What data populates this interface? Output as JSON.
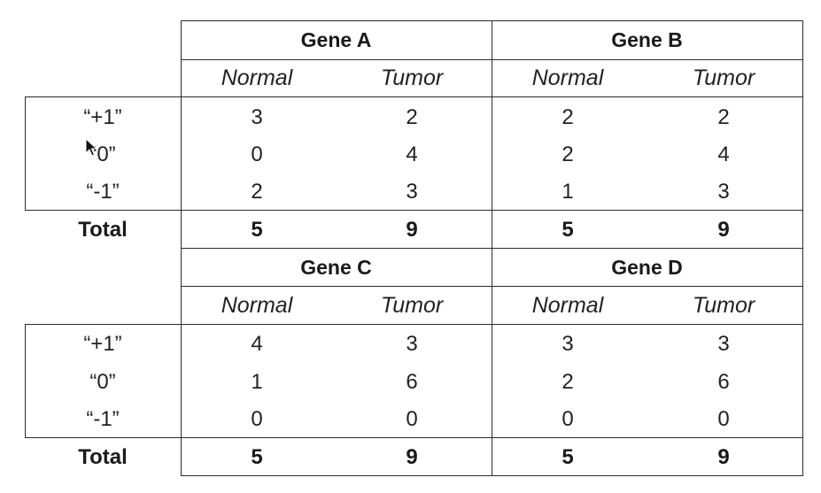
{
  "blocks": [
    {
      "genes": [
        "Gene A",
        "Gene B"
      ],
      "columns": [
        "Normal",
        "Tumor",
        "Normal",
        "Tumor"
      ],
      "row_labels": [
        "“+1”",
        "“0”",
        "“-1”"
      ],
      "rows": [
        [
          "3",
          "2",
          "2",
          "2"
        ],
        [
          "0",
          "4",
          "2",
          "4"
        ],
        [
          "2",
          "3",
          "1",
          "3"
        ]
      ],
      "total_label": "Total",
      "totals": [
        "5",
        "9",
        "5",
        "9"
      ]
    },
    {
      "genes": [
        "Gene C",
        "Gene D"
      ],
      "columns": [
        "Normal",
        "Tumor",
        "Normal",
        "Tumor"
      ],
      "row_labels": [
        "“+1”",
        "“0”",
        "“-1”"
      ],
      "rows": [
        [
          "4",
          "3",
          "3",
          "3"
        ],
        [
          "1",
          "6",
          "2",
          "6"
        ],
        [
          "0",
          "0",
          "0",
          "0"
        ]
      ],
      "total_label": "Total",
      "totals": [
        "5",
        "9",
        "5",
        "9"
      ]
    }
  ]
}
